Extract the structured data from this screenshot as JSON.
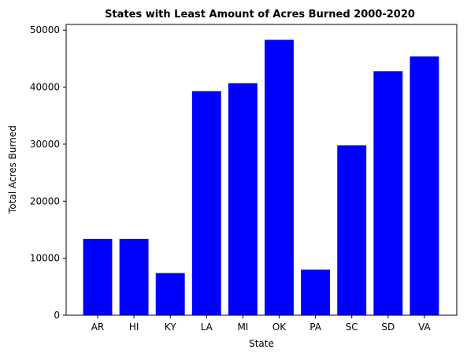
{
  "chart_data": {
    "type": "bar",
    "title": "States with Least Amount of Acres Burned 2000-2020",
    "xlabel": "State",
    "ylabel": "Total Acres Burned",
    "categories": [
      "AR",
      "HI",
      "KY",
      "LA",
      "MI",
      "OK",
      "PA",
      "SC",
      "SD",
      "VA"
    ],
    "values": [
      13400,
      13400,
      7400,
      39300,
      40700,
      48300,
      8000,
      29800,
      42800,
      45400
    ],
    "ylim": [
      0,
      51000
    ],
    "yticks": [
      0,
      10000,
      20000,
      30000,
      40000,
      50000
    ],
    "bar_color": "#0000ff",
    "grid": false,
    "legend": "none"
  }
}
